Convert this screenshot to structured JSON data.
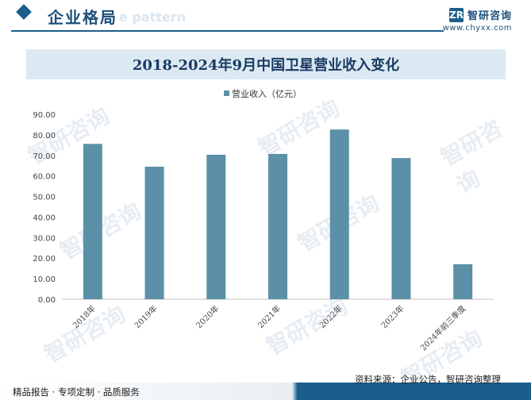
{
  "header": {
    "title": "企业格局",
    "ghost_text": "e pattern",
    "brand_name": "智研咨询",
    "brand_logo": "ZR",
    "brand_url": "www.chyxx.com"
  },
  "watermark_text": "智研咨询",
  "chart_data": {
    "type": "bar",
    "title": "2018-2024年9月中国卫星营业收入变化",
    "categories": [
      "2018年",
      "2019年",
      "2020年",
      "2021年",
      "2022年",
      "2023年",
      "2024年前三季度"
    ],
    "series": [
      {
        "name": "营业收入（亿元）",
        "values": [
          75.6,
          64.5,
          70.3,
          70.7,
          82.6,
          68.7,
          17.0
        ],
        "color": "#5b90a8"
      }
    ],
    "ylim": [
      0,
      90
    ],
    "yticks": [
      "0.00",
      "10.00",
      "20.00",
      "30.00",
      "40.00",
      "50.00",
      "60.00",
      "70.00",
      "80.00",
      "90.00"
    ],
    "legend_position": "top-center",
    "grid": false
  },
  "footer": {
    "source": "资料来源：企业公告，智研咨询整理",
    "services": "精品报告 · 专项定制 · 品质服务"
  }
}
